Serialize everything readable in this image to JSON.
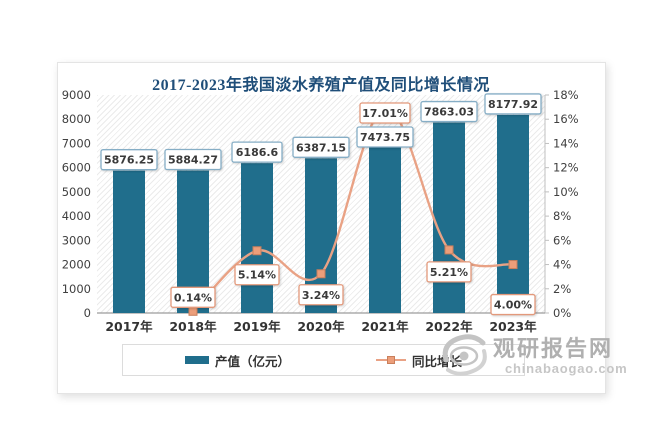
{
  "title": "2017-2023年我国淡水养殖产值及同比增长情况",
  "legend": {
    "items": [
      {
        "label": "产值（亿元）",
        "type": "bar"
      },
      {
        "label": "同比增长",
        "type": "line"
      }
    ]
  },
  "watermark": {
    "name": "观研报告网",
    "domain": "chinabaogao.com"
  },
  "colors": {
    "bar": "#206E8C",
    "line": "#E9A285",
    "marker": "#EC9E7A",
    "marker_border": "#C97F5C",
    "bar_label_border": "#86AEC6",
    "line_label_border": "#E3997B",
    "label_text": "#3A3A3A",
    "title": "#1F4E79",
    "axis_text": "#404040",
    "axis_line": "#BFBFBF",
    "x_axis_line": "#9C9C9C",
    "watermark_gray": "#B5B5B5"
  },
  "chart_data": {
    "type": "bar+line",
    "title": "2017-2023年我国淡水养殖产值及同比增长情况",
    "categories": [
      "2017年",
      "2018年",
      "2019年",
      "2020年",
      "2021年",
      "2022年",
      "2023年"
    ],
    "series": [
      {
        "name": "产值（亿元）",
        "type": "bar",
        "axis": "left",
        "values": [
          5876.25,
          5884.27,
          6186.6,
          6387.15,
          7473.75,
          7863.03,
          8177.92
        ],
        "labels": [
          "5876.25",
          "5884.27",
          "6186.6",
          "6387.15",
          "7473.75",
          "7863.03",
          "8177.92"
        ]
      },
      {
        "name": "同比增长",
        "type": "line",
        "axis": "right",
        "values": [
          null,
          0.14,
          5.14,
          3.24,
          17.01,
          5.21,
          4.0
        ],
        "labels": [
          null,
          "0.14%",
          "5.14%",
          "3.24%",
          "17.01%",
          "5.21%",
          "4.00%"
        ]
      }
    ],
    "left_axis": {
      "min": 0,
      "max": 9000,
      "step": 1000,
      "ticks": [
        "0",
        "1000",
        "2000",
        "3000",
        "4000",
        "5000",
        "6000",
        "7000",
        "8000",
        "9000"
      ]
    },
    "right_axis": {
      "min": 0,
      "max": 18,
      "step": 2,
      "ticks": [
        "0%",
        "2%",
        "4%",
        "6%",
        "8%",
        "10%",
        "12%",
        "14%",
        "16%",
        "18%"
      ]
    },
    "grid": false,
    "legend_position": "bottom",
    "smooth_line": true
  }
}
